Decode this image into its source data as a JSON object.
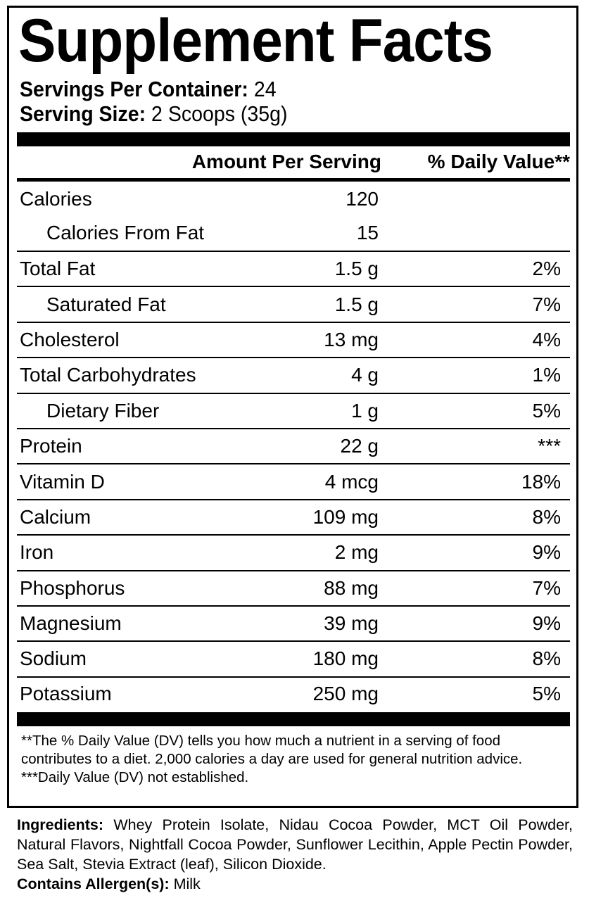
{
  "title": "Supplement Facts",
  "servings_per_container_label": "Servings Per Container:",
  "servings_per_container": "24",
  "serving_size_label": "Serving Size:",
  "serving_size": "2 Scoops (35g)",
  "columns": {
    "amount": "Amount Per Serving",
    "dv": "% Daily Value**"
  },
  "rows": [
    {
      "name": "Calories",
      "amount": "120",
      "dv": ""
    },
    {
      "name": "Calories From Fat",
      "amount": "15",
      "dv": ""
    },
    {
      "name": "Total Fat",
      "amount": "1.5 g",
      "dv": "2%"
    },
    {
      "name": "Saturated Fat",
      "amount": "1.5 g",
      "dv": "7%"
    },
    {
      "name": "Cholesterol",
      "amount": "13 mg",
      "dv": "4%"
    },
    {
      "name": "Total Carbohydrates",
      "amount": "4 g",
      "dv": "1%"
    },
    {
      "name": "Dietary Fiber",
      "amount": "1 g",
      "dv": "5%"
    },
    {
      "name": "Protein",
      "amount": "22 g",
      "dv": "***"
    },
    {
      "name": "Vitamin D",
      "amount": "4 mcg",
      "dv": "18%"
    },
    {
      "name": "Calcium",
      "amount": "109 mg",
      "dv": "8%"
    },
    {
      "name": "Iron",
      "amount": "2 mg",
      "dv": "9%"
    },
    {
      "name": "Phosphorus",
      "amount": "88 mg",
      "dv": "7%"
    },
    {
      "name": "Magnesium",
      "amount": "39 mg",
      "dv": "9%"
    },
    {
      "name": "Sodium",
      "amount": "180 mg",
      "dv": "8%"
    },
    {
      "name": "Potassium",
      "amount": "250 mg",
      "dv": "5%"
    }
  ],
  "footnotes": {
    "dv_note": "**The % Daily Value (DV) tells you how much a nutrient in a serving of food contributes to a diet. 2,000 calories a day are used for general nutrition advice.",
    "not_established": "***Daily Value (DV) not established."
  },
  "ingredients_label": "Ingredients:",
  "ingredients": "Whey Protein Isolate, Nidau Cocoa Powder, MCT Oil Powder, Natural Flavors, Nightfall Cocoa Powder, Sunflower Lecithin, Apple Pectin Powder, Sea Salt, Stevia Extract (leaf), Silicon Dioxide.",
  "allergen_label": "Contains Allergen(s):",
  "allergens": "Milk"
}
